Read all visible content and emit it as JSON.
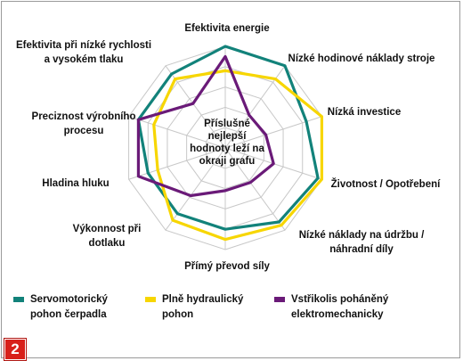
{
  "chart_data": {
    "type": "radar",
    "axes": [
      [
        "Efektivita energie"
      ],
      [
        "Nízké hodinové náklady stroje"
      ],
      [
        "Nízká investice"
      ],
      [
        "Životnost / Opotřebení"
      ],
      [
        "Nízké náklady na údržbu /",
        "náhradní díly"
      ],
      [
        "Přímý převod síly"
      ],
      [
        "Výkonnost při",
        "dotlaku"
      ],
      [
        "Hladina hluku"
      ],
      [
        "Preciznost výrobního",
        "procesu"
      ],
      [
        "Efektivita při nízké rychlosti",
        "a vysokém tlaku"
      ]
    ],
    "scale_levels": 5,
    "max_value": 5,
    "center_note": [
      "Příslušné",
      "nejlepší",
      "hodnoty leží na",
      "okraji grafu"
    ],
    "series": [
      {
        "name": [
          "Servomotorický",
          "pohon čerpadla"
        ],
        "color": "#12827a",
        "values": [
          5.0,
          5.0,
          4.2,
          4.8,
          4.5,
          4.0,
          4.0,
          4.0,
          4.5,
          4.5
        ]
      },
      {
        "name": [
          "Plně hydraulický",
          "pohon"
        ],
        "color": "#f7d600",
        "values": [
          3.8,
          4.2,
          5.0,
          5.0,
          4.7,
          4.5,
          4.4,
          3.5,
          3.7,
          4.2
        ]
      },
      {
        "name": [
          "Vstřikolis poháněný",
          "elektromechanicky"
        ],
        "color": "#6a1a78",
        "values": [
          4.5,
          2.0,
          2.1,
          2.5,
          2.1,
          2.1,
          2.9,
          4.5,
          4.5,
          2.7
        ]
      }
    ]
  },
  "badge": "2"
}
